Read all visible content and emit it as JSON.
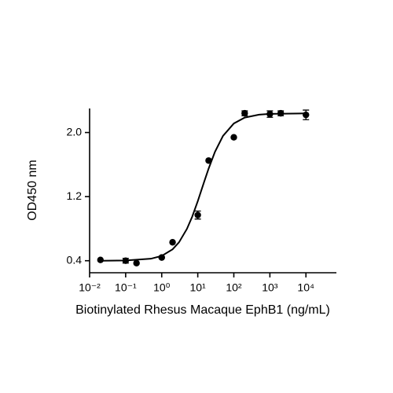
{
  "chart_data": {
    "type": "scatter",
    "xlabel": "Biotinylated Rhesus Macaque EphB1 (ng/mL)",
    "ylabel": "OD450 nm",
    "xscale": "log",
    "xlim": [
      0.01,
      70000
    ],
    "ylim": [
      0.25,
      2.3
    ],
    "xticks": [
      {
        "value": 0.01,
        "label": "10⁻²"
      },
      {
        "value": 0.1,
        "label": "10⁻¹"
      },
      {
        "value": 1,
        "label": "10⁰"
      },
      {
        "value": 10,
        "label": "10¹"
      },
      {
        "value": 100,
        "label": "10²"
      },
      {
        "value": 1000,
        "label": "10³"
      },
      {
        "value": 10000,
        "label": "10⁴"
      }
    ],
    "yticks": [
      0.4,
      1.2,
      {
        "value": 2,
        "label": "2.0"
      }
    ],
    "series": [
      {
        "color": "#000000",
        "x": [
          0.02,
          0.1,
          0.2,
          1,
          2,
          10,
          20,
          100,
          200,
          1000,
          2000,
          10000
        ],
        "values": [
          0.41,
          0.4,
          0.37,
          0.44,
          0.63,
          0.97,
          1.65,
          1.94,
          2.24,
          2.23,
          2.24,
          2.22
        ],
        "errors": [
          0,
          0.03,
          0,
          0.01,
          0,
          0.05,
          0,
          0,
          0.03,
          0.04,
          0.03,
          0.06
        ]
      }
    ],
    "curve": {
      "color": "#000000",
      "x": [
        0.02,
        0.1,
        0.5,
        1,
        2,
        3,
        5,
        7,
        10,
        15,
        20,
        30,
        50,
        100,
        200,
        500,
        1000,
        10000
      ],
      "values": [
        0.4,
        0.403,
        0.425,
        0.46,
        0.542,
        0.628,
        0.797,
        0.949,
        1.143,
        1.383,
        1.55,
        1.759,
        1.957,
        2.113,
        2.186,
        2.223,
        2.233,
        2.239
      ]
    }
  }
}
